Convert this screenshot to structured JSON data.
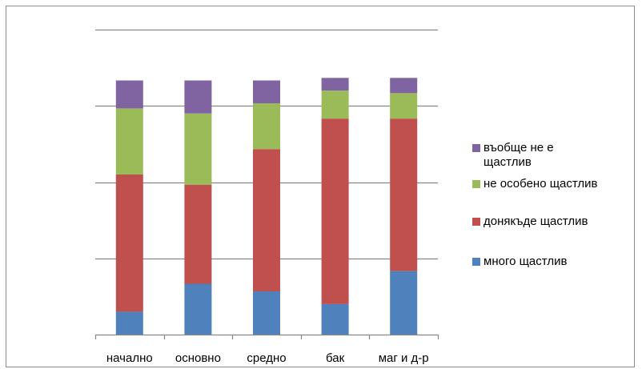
{
  "chart_data": {
    "type": "bar",
    "stacked": true,
    "categories": [
      "начално",
      "основно",
      "средно",
      "бак",
      "маг и д-р"
    ],
    "series": [
      {
        "name": "много щастлив",
        "color": "#4f81bd",
        "values": [
          9,
          20,
          17,
          12,
          25
        ]
      },
      {
        "name": "донякъде щастлив",
        "color": "#c0504d",
        "values": [
          54,
          39,
          56,
          73,
          60
        ]
      },
      {
        "name": "не особено щастлив",
        "color": "#9bbb59",
        "values": [
          26,
          28,
          18,
          11,
          10
        ]
      },
      {
        "name": "въобще не е щастлив",
        "color": "#8064a2",
        "values": [
          11,
          13,
          9,
          5,
          6
        ]
      }
    ],
    "ylim": [
      0,
      120
    ],
    "grid": true,
    "legend_position": "right",
    "legend_order": "reversed"
  }
}
